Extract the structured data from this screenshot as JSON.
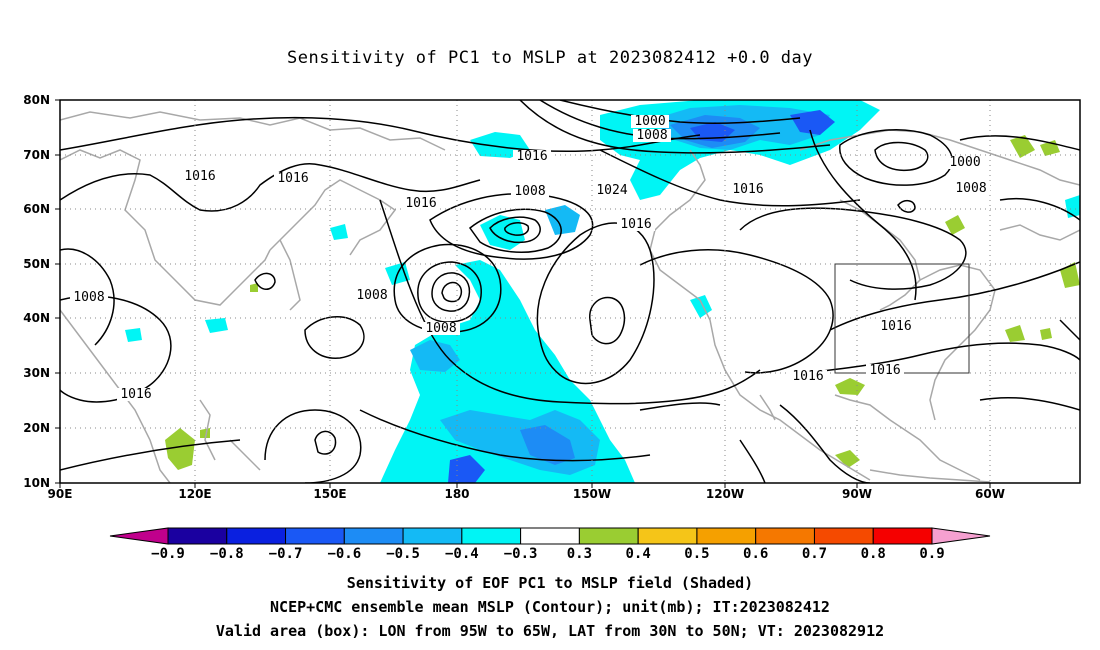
{
  "title": "Sensitivity of PC1 to MSLP at 2023082412 +0.0 day",
  "axes": {
    "lat_labels": [
      "80N",
      "70N",
      "60N",
      "50N",
      "40N",
      "30N",
      "20N",
      "10N"
    ],
    "lon_labels": [
      "90E",
      "120E",
      "150E",
      "180",
      "150W",
      "120W",
      "90W",
      "60W"
    ]
  },
  "contour_labels": [
    "1000",
    "1008",
    "1016",
    "1016",
    "1016",
    "1008",
    "1016",
    "1024",
    "1016",
    "1000",
    "1008",
    "1008",
    "1016",
    "1008",
    "1008",
    "1016",
    "1016",
    "1016",
    "1016"
  ],
  "valid_box": {
    "lon_from": "95W",
    "lon_to": "65W",
    "lat_from": "30N",
    "lat_to": "50N"
  },
  "colorbar": {
    "labels": [
      "-0.9",
      "-0.8",
      "-0.7",
      "-0.6",
      "-0.5",
      "-0.4",
      "-0.3",
      "0.3",
      "0.4",
      "0.5",
      "0.6",
      "0.7",
      "0.8",
      "0.9"
    ],
    "colors": [
      "#1a00a0",
      "#0a20e0",
      "#1a58f5",
      "#1d8cf5",
      "#14baf5",
      "#00f5f5",
      "#ffffff",
      "#9acd32",
      "#f5c518",
      "#f5a000",
      "#f57800",
      "#f54a00",
      "#f50000"
    ],
    "left_arrow_color": "#c0008c",
    "right_arrow_color": "#f5a0d0"
  },
  "footer": {
    "line1": "Sensitivity of EOF PC1 to MSLP field (Shaded)",
    "line2": "NCEP+CMC ensemble mean MSLP (Contour); unit(mb); IT:2023082412",
    "line3": "Valid area (box): LON from 95W to 65W, LAT from 30N to 50N; VT: 2023082912"
  }
}
